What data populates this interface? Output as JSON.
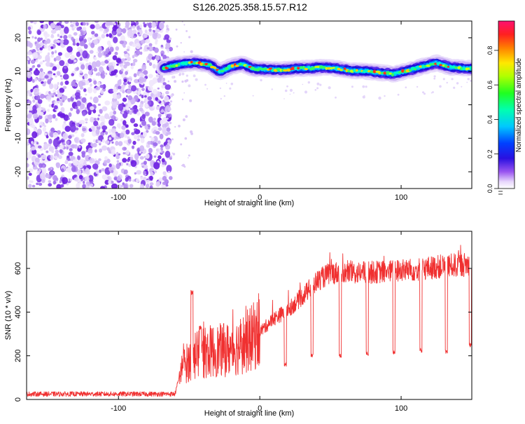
{
  "title": "S126.2025.358.15.57.R12",
  "colors": {
    "signal": "#f03030",
    "scatter_dark": "#6a1ce0",
    "scatter_light": "#dcc8f8"
  },
  "chart_data": [
    {
      "type": "heatmap",
      "title": "S126.2025.358.15.57.R12",
      "xlabel": "Height of straight line (km)",
      "ylabel": "Frequency (Hz)",
      "xlim": [
        -165,
        150
      ],
      "ylim": [
        -25,
        25
      ],
      "xticks": [
        -100,
        0,
        100
      ],
      "yticks": [
        20,
        10,
        0,
        -10,
        -20
      ],
      "noise_region_x": [
        -165,
        -65
      ],
      "ridge": {
        "x": [
          -68,
          -55,
          -45,
          -35,
          -28,
          -20,
          -12,
          -5,
          5,
          15,
          25,
          35,
          45,
          55,
          65,
          75,
          85,
          95,
          105,
          115,
          125,
          135,
          150
        ],
        "frequency": [
          11,
          12.3,
          12.6,
          11.8,
          9.8,
          11.5,
          12.2,
          10.8,
          10.6,
          10.4,
          10.8,
          10.9,
          11.2,
          10.8,
          10.2,
          10.0,
          9.6,
          9.2,
          10.2,
          11.4,
          12.5,
          11.2,
          10.8
        ]
      },
      "colorbar": {
        "label": "Normalized spectral amplitude",
        "ticks": [
          0.0,
          0.2,
          0.4,
          0.6,
          0.8
        ],
        "range": [
          0,
          0.97
        ]
      }
    },
    {
      "type": "line",
      "xlabel": "Height of straight line (km)",
      "ylabel": "SNR (10 * v/v)",
      "xlim": [
        -165,
        150
      ],
      "ylim": [
        0,
        770
      ],
      "xticks": [
        -100,
        0,
        100
      ],
      "yticks": [
        0,
        200,
        400,
        600
      ],
      "series": [
        {
          "name": "SNR",
          "trend_x": [
            -165,
            -105,
            -60,
            -55,
            -45,
            -35,
            -20,
            -10,
            0,
            10,
            20,
            30,
            40,
            50,
            70,
            90,
            110,
            130,
            150
          ],
          "trend_y": [
            25,
            25,
            25,
            150,
            200,
            220,
            230,
            260,
            310,
            370,
            410,
            470,
            540,
            580,
            580,
            585,
            595,
            610,
            620
          ],
          "spikes": [
            {
              "x": -48,
              "y": 490
            },
            {
              "x": -42,
              "y": 330
            },
            {
              "x": 18,
              "y": 160
            },
            {
              "x": 37,
              "y": 200
            },
            {
              "x": 57,
              "y": 200
            },
            {
              "x": 76,
              "y": 210
            },
            {
              "x": 95,
              "y": 215
            },
            {
              "x": 114,
              "y": 225
            },
            {
              "x": 132,
              "y": 220
            },
            {
              "x": 149,
              "y": 250
            }
          ]
        }
      ]
    }
  ]
}
